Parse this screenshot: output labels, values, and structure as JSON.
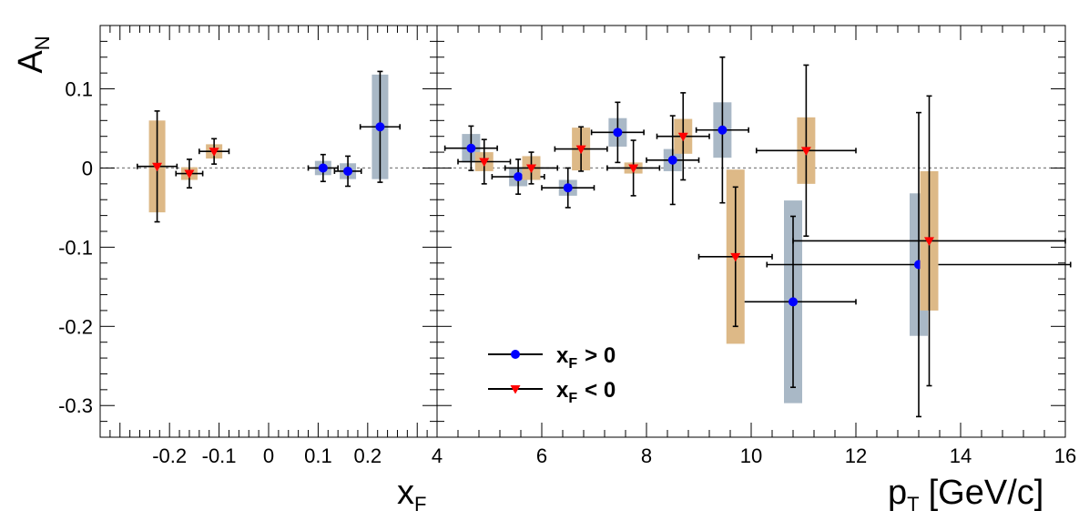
{
  "chart_data": [
    {
      "type": "scatter",
      "xlabel": "x",
      "xlabel_sub": "F",
      "ylabel": "A",
      "ylabel_sub": "N",
      "xlim": [
        -0.34,
        0.34
      ],
      "ylim": [
        -0.34,
        0.18
      ],
      "x_ticks": [
        -0.2,
        -0.1,
        0,
        0.1,
        0.2
      ],
      "x_tick_labels": [
        "-0.2",
        "-0.1",
        "0",
        "0.1",
        "0.2"
      ],
      "y_ticks": [
        0.1,
        0,
        -0.1,
        -0.2,
        -0.3
      ],
      "y_tick_labels": [
        "0.1",
        "0",
        "-0.1",
        "-0.2",
        "-0.3"
      ],
      "reference_line_y": 0,
      "series": [
        {
          "name": "x_F > 0",
          "marker": "circle",
          "color": "#0000ff",
          "sys_color": "#a9b8c6",
          "points": [
            {
              "x": 0.11,
              "y": 0.0,
              "xerr": 0.03,
              "yerr": 0.017,
              "sys": 0.009
            },
            {
              "x": 0.16,
              "y": -0.004,
              "xerr": 0.027,
              "yerr": 0.019,
              "sys": 0.01
            },
            {
              "x": 0.225,
              "y": 0.052,
              "xerr": 0.04,
              "yerr": 0.07,
              "sys": 0.066
            }
          ]
        },
        {
          "name": "x_F < 0",
          "marker": "triangle-down",
          "color": "#ff0000",
          "sys_color": "#ddb987",
          "points": [
            {
              "x": -0.225,
              "y": 0.002,
              "xerr": 0.04,
              "yerr": 0.07,
              "sys": 0.058
            },
            {
              "x": -0.16,
              "y": -0.007,
              "xerr": 0.027,
              "yerr": 0.018,
              "sys": 0.008
            },
            {
              "x": -0.11,
              "y": 0.021,
              "xerr": 0.03,
              "yerr": 0.016,
              "sys": 0.009
            }
          ]
        }
      ]
    },
    {
      "type": "scatter",
      "xlabel": "p",
      "xlabel_sub": "T",
      "xlabel_suffix": "[GeV/c]",
      "xlim": [
        4,
        16
      ],
      "ylim": [
        -0.34,
        0.18
      ],
      "x_ticks": [
        4,
        6,
        8,
        10,
        12,
        14,
        16
      ],
      "x_tick_labels": [
        "4",
        "6",
        "8",
        "10",
        "12",
        "14",
        "16"
      ],
      "reference_line_y": 0,
      "legend": {
        "position": "bottom-left",
        "entries": [
          {
            "label": "x",
            "sub": "F",
            "suffix": "> 0",
            "marker": "circle",
            "color": "#0000ff"
          },
          {
            "label": "x",
            "sub": "F",
            "suffix": "< 0",
            "marker": "triangle-down",
            "color": "#ff0000"
          }
        ]
      },
      "series": [
        {
          "name": "x_F > 0",
          "marker": "circle",
          "color": "#0000ff",
          "sys_color": "#a9b8c6",
          "points": [
            {
              "x": 4.65,
              "y": 0.025,
              "xerr": 0.5,
              "yerr": 0.028,
              "sys": 0.018
            },
            {
              "x": 5.55,
              "y": -0.011,
              "xerr": 0.5,
              "yerr": 0.022,
              "sys": 0.012
            },
            {
              "x": 6.5,
              "y": -0.025,
              "xerr": 0.5,
              "yerr": 0.025,
              "sys": 0.01
            },
            {
              "x": 7.45,
              "y": 0.045,
              "xerr": 0.5,
              "yerr": 0.038,
              "sys": 0.018
            },
            {
              "x": 8.5,
              "y": 0.01,
              "xerr": 0.5,
              "yerr": 0.056,
              "sys": 0.014
            },
            {
              "x": 9.45,
              "y": 0.048,
              "xerr": 0.5,
              "yerr": 0.092,
              "sys": 0.035
            },
            {
              "x": 10.8,
              "y": -0.169,
              "xerr": 1.2,
              "yerr": 0.108,
              "sys": 0.128
            },
            {
              "x": 13.2,
              "y": -0.122,
              "xerr": 2.9,
              "yerr": 0.192,
              "sys": 0.09
            }
          ]
        },
        {
          "name": "x_F < 0",
          "marker": "triangle-down",
          "color": "#ff0000",
          "sys_color": "#ddb987",
          "points": [
            {
              "x": 4.9,
              "y": 0.008,
              "xerr": 0.5,
              "yerr": 0.028,
              "sys": 0.012
            },
            {
              "x": 5.8,
              "y": 0.0,
              "xerr": 0.5,
              "yerr": 0.02,
              "sys": 0.015
            },
            {
              "x": 6.75,
              "y": 0.024,
              "xerr": 0.5,
              "yerr": 0.028,
              "sys": 0.027
            },
            {
              "x": 7.75,
              "y": 0.0,
              "xerr": 0.5,
              "yerr": 0.035,
              "sys": 0.007
            },
            {
              "x": 8.7,
              "y": 0.04,
              "xerr": 0.5,
              "yerr": 0.055,
              "sys": 0.022
            },
            {
              "x": 9.7,
              "y": -0.112,
              "xerr": 0.7,
              "yerr": 0.088,
              "sys": 0.11
            },
            {
              "x": 11.05,
              "y": 0.022,
              "xerr": 0.95,
              "yerr": 0.108,
              "sys": 0.042
            },
            {
              "x": 13.4,
              "y": -0.092,
              "xerr": 2.6,
              "yerr": 0.183,
              "sys": 0.088
            }
          ]
        }
      ]
    }
  ]
}
